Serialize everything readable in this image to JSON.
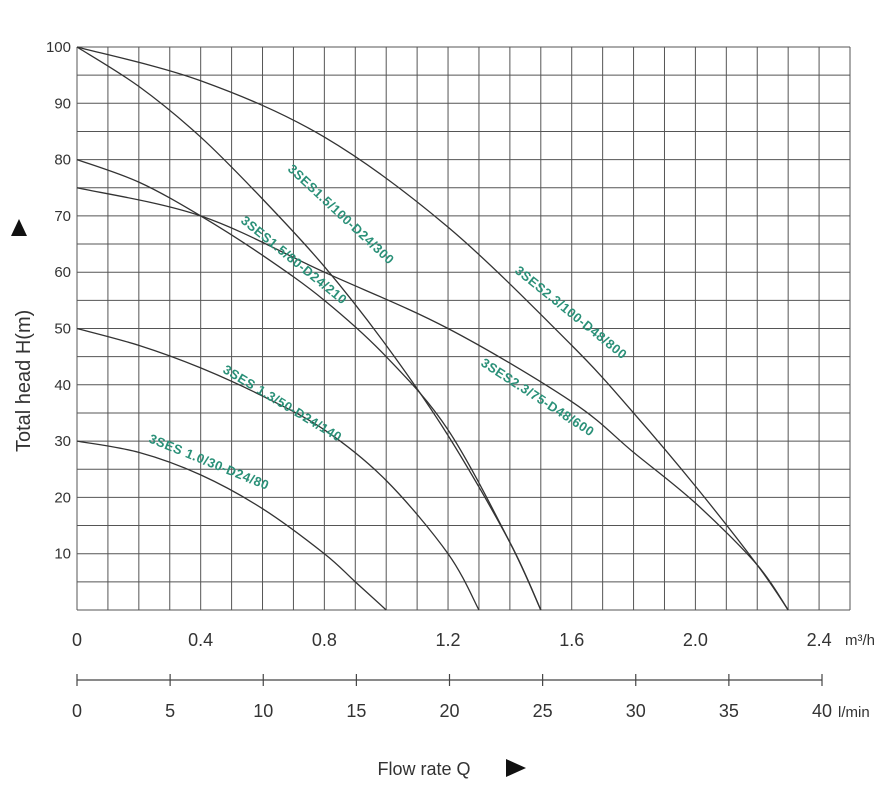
{
  "colors": {
    "background": "#ffffff",
    "grid": "#555555",
    "curve": "#333333",
    "label": "#2a9078",
    "text": "#333333"
  },
  "chart_data": {
    "type": "line",
    "title": "",
    "ylabel": "Total head H(m)",
    "xlabel": "Flow rate Q",
    "ylim": [
      0,
      100
    ],
    "xlim_m3h": [
      0,
      2.4
    ],
    "y_ticks": [
      "100",
      "90",
      "80",
      "70",
      "60",
      "50",
      "40",
      "30",
      "20",
      "10"
    ],
    "y_tick_values": [
      100,
      90,
      80,
      70,
      60,
      50,
      40,
      30,
      20,
      10
    ],
    "x_ticks_m3h": [
      "0",
      "0.4",
      "0.8",
      "1.2",
      "1.6",
      "2.0",
      "2.4"
    ],
    "x_tick_values_m3h": [
      0,
      0.4,
      0.8,
      1.2,
      1.6,
      2.0,
      2.4
    ],
    "x_unit_m3h": "m³/h",
    "x_ticks_lmin": [
      "0",
      "5",
      "10",
      "15",
      "20",
      "25",
      "30",
      "35",
      "40"
    ],
    "x_tick_values_lmin": [
      0,
      5,
      10,
      15,
      20,
      25,
      30,
      35,
      40
    ],
    "x_unit_lmin": "l/min",
    "grid": true,
    "series": [
      {
        "name": "3SES 1.0/30-D24/80",
        "label": "3SES 1.0/30-D24/80",
        "x": [
          0,
          0.2,
          0.4,
          0.6,
          0.8,
          0.9,
          1.0
        ],
        "y": [
          30,
          28,
          24,
          18,
          10,
          5,
          0
        ]
      },
      {
        "name": "3SES 1.3/50-D24/140",
        "label": "3SES 1.3/50-D24/140",
        "x": [
          0,
          0.2,
          0.4,
          0.6,
          0.8,
          1.0,
          1.2,
          1.3
        ],
        "y": [
          50,
          47,
          43,
          38,
          32,
          23,
          10,
          0
        ]
      },
      {
        "name": "3SES1.5/80-D24/210",
        "label": "3SES1.5/80-D24/210",
        "x": [
          0,
          0.2,
          0.4,
          0.6,
          0.8,
          1.0,
          1.2,
          1.4,
          1.5
        ],
        "y": [
          80,
          76,
          70,
          63,
          55,
          45,
          32,
          12,
          0
        ]
      },
      {
        "name": "3SES1.5/100-D24/300",
        "label": "3SES1.5/100-D24/300",
        "x": [
          0,
          0.2,
          0.4,
          0.6,
          0.8,
          1.0,
          1.2,
          1.4,
          1.5
        ],
        "y": [
          100,
          93,
          84,
          73,
          61,
          47,
          31,
          12,
          0
        ]
      },
      {
        "name": "3SES2.3/75-D48/600",
        "label": "3SES2.3/75-D48/600",
        "x": [
          0,
          0.4,
          0.8,
          1.2,
          1.6,
          1.8,
          2.0,
          2.2,
          2.3
        ],
        "y": [
          75,
          70,
          60,
          50,
          37,
          28,
          19,
          8,
          0
        ]
      },
      {
        "name": "3SES2.3/100-D48/800",
        "label": "3SES2.3/100-D48/800",
        "x": [
          0,
          0.4,
          0.8,
          1.2,
          1.6,
          1.8,
          2.0,
          2.2,
          2.3
        ],
        "y": [
          100,
          94,
          84,
          68,
          47,
          35,
          22,
          8,
          0
        ]
      }
    ]
  }
}
